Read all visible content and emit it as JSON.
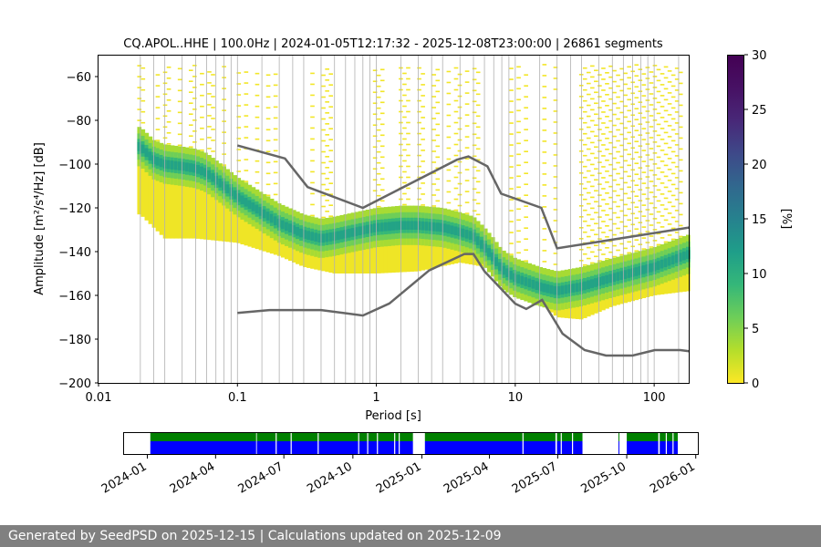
{
  "chart_data": [
    {
      "type": "heatmap",
      "title": "CQ.APOL..HHE | 100.0Hz | 2024-01-05T12:17:32 - 2025-12-08T23:00:00 | 26861 segments",
      "xlabel": "Period [s]",
      "ylabel": "Amplitude [m²/s⁴/Hz] [dB]",
      "xscale": "log",
      "xlim": [
        0.01,
        180
      ],
      "ylim": [
        -200,
        -50
      ],
      "x_tick_labels": [
        "0.01",
        "0.1",
        "1",
        "10",
        "100"
      ],
      "y_ticks": [
        -200,
        -180,
        -160,
        -140,
        -120,
        -100,
        -80,
        -60
      ],
      "grid": "vertical lines at period bins",
      "colorbar": {
        "label": "[%]",
        "range": [
          0,
          30
        ],
        "ticks": [
          0,
          5,
          10,
          15,
          20,
          25,
          30
        ],
        "colormap": "viridis"
      },
      "psd_mode_curve": {
        "period": [
          0.02,
          0.025,
          0.03,
          0.04,
          0.05,
          0.06,
          0.08,
          0.1,
          0.15,
          0.2,
          0.3,
          0.4,
          0.5,
          0.7,
          1,
          1.5,
          2,
          3,
          4,
          5,
          6,
          7,
          8,
          10,
          15,
          20,
          30,
          50,
          100,
          180
        ],
        "amplitude": [
          -92,
          -98,
          -100,
          -101,
          -102,
          -104,
          -110,
          -115,
          -122,
          -127,
          -132,
          -134,
          -133,
          -131,
          -129,
          -128,
          -128,
          -129,
          -131,
          -133,
          -138,
          -143,
          -148,
          -152,
          -156,
          -158,
          -156,
          -152,
          -147,
          -141
        ]
      },
      "density_envelope": {
        "period": [
          0.019,
          0.02,
          0.03,
          0.05,
          0.1,
          0.2,
          0.3,
          0.5,
          1,
          2,
          4,
          6,
          10,
          15,
          20,
          30,
          50,
          100,
          180
        ],
        "upper": [
          -69,
          -76,
          -79,
          -80,
          -79,
          -74,
          -68,
          -64,
          -62,
          -63,
          -67,
          -69,
          -70,
          -70,
          -72,
          -73,
          -72,
          -72,
          -71
        ],
        "lower": [
          -123,
          -123,
          -134,
          -134,
          -136,
          -142,
          -147,
          -150,
          -150,
          -149,
          -145,
          -147,
          -160,
          -163,
          -170,
          -171,
          -165,
          -160,
          -158
        ]
      },
      "nhnm": {
        "period": [
          0.1,
          0.22,
          0.32,
          0.8,
          3.8,
          4.6,
          6.3,
          7.9,
          15.4,
          20,
          354.8
        ],
        "amplitude": [
          -91.5,
          -97.4,
          -110.5,
          -120,
          -98,
          -96.5,
          -101,
          -113.5,
          -120,
          -138.5,
          -126
        ]
      },
      "nlnm": {
        "period": [
          0.1,
          0.17,
          0.4,
          0.8,
          1.24,
          2.4,
          4.3,
          5,
          6,
          10,
          12,
          15.6,
          21.9,
          31.6,
          45,
          70,
          101,
          154,
          178
        ],
        "amplitude": [
          -168,
          -166.7,
          -166.7,
          -169.2,
          -163.7,
          -148.6,
          -141.1,
          -141.1,
          -149,
          -163.8,
          -166.2,
          -162.1,
          -177.5,
          -185,
          -187.5,
          -187.5,
          -185,
          -185,
          -185.5
        ]
      }
    },
    {
      "type": "timeline",
      "x_tick_labels": [
        "2024-01",
        "2024-04",
        "2024-07",
        "2024-10",
        "2025-01",
        "2025-04",
        "2025-07",
        "2025-10",
        "2026-01"
      ],
      "xlim": [
        "2023-12-01",
        "2026-01-05"
      ],
      "series": [
        {
          "name": "",
          "color": "#008000"
        },
        {
          "name": "",
          "color": "#0000ff"
        }
      ],
      "coverage_intervals": [
        [
          "2024-01-05",
          "2024-05-25"
        ],
        [
          "2024-05-26",
          "2024-12-20"
        ],
        [
          "2025-01-05",
          "2025-06-28"
        ],
        [
          "2025-06-30",
          "2025-08-03"
        ],
        [
          "2025-09-20",
          "2025-09-21"
        ],
        [
          "2025-10-01",
          "2025-11-12"
        ],
        [
          "2025-11-14",
          "2025-12-08"
        ]
      ],
      "gaps": [
        "2024-06-20",
        "2024-07-10",
        "2024-08-15",
        "2024-10-08",
        "2024-10-20",
        "2024-11-02",
        "2024-11-25",
        "2024-12-01",
        "2025-05-15",
        "2025-07-05",
        "2025-07-20",
        "2025-11-22",
        "2025-12-01"
      ]
    }
  ],
  "footer": "Generated by SeedPSD on 2025-12-15 | Calculations updated on 2025-12-09"
}
